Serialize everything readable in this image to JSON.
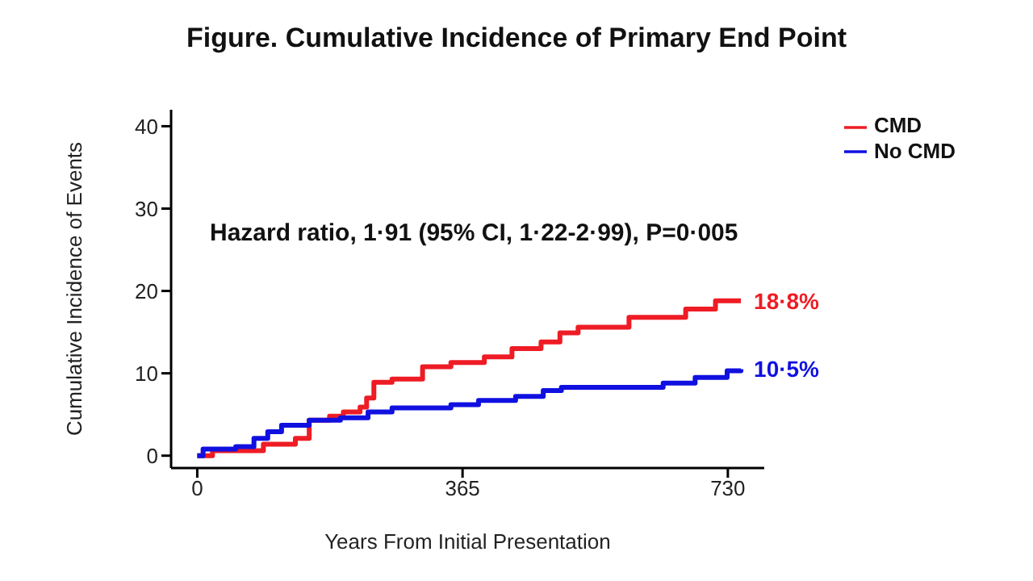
{
  "chart_data": {
    "type": "step",
    "title": "Figure. Cumulative Incidence of Primary End Point",
    "xlabel": "Years From Initial Presentation",
    "ylabel": "Cumulative Incidence of Events",
    "xlim": [
      -36,
      780
    ],
    "xticks": [
      0,
      365,
      730
    ],
    "ylim": [
      -1.5,
      42
    ],
    "yticks": [
      0,
      10,
      20,
      30,
      40
    ],
    "legend": "top right",
    "marker": "none",
    "line_style": "solid",
    "annotations": [
      "Hazard ratio, 1·91 (95% CI, 1·22-2·99), P=0·005",
      {
        "text": "18·8%",
        "x": 748,
        "y": 18.8
      },
      {
        "text": "10·5%",
        "x": 748,
        "y": 10.5
      }
    ],
    "series": [
      {
        "name": "CMD",
        "color": "#ee1c25",
        "x": [
          0,
          21,
          91,
          135,
          154,
          182,
          201,
          224,
          233,
          243,
          268,
          310,
          349,
          395,
          433,
          473,
          499,
          524,
          594,
          672,
          713,
          748
        ],
        "values": [
          0,
          0.6,
          1.4,
          2.1,
          4.3,
          4.8,
          5.3,
          5.9,
          7,
          8.9,
          9.3,
          10.8,
          11.3,
          12,
          13,
          13.8,
          14.9,
          15.6,
          16.8,
          17.8,
          18.8,
          18.8
        ]
      },
      {
        "name": "No CMD",
        "color": "#1010e0",
        "x": [
          0,
          8,
          53,
          78,
          97,
          116,
          154,
          197,
          235,
          268,
          349,
          387,
          438,
          476,
          501,
          641,
          685,
          729,
          748
        ],
        "values": [
          0,
          0.8,
          1.1,
          2.1,
          2.9,
          3.7,
          4.3,
          4.6,
          5.3,
          5.8,
          6.2,
          6.7,
          7.2,
          7.9,
          8.3,
          8.8,
          9.5,
          10.3,
          10.5
        ]
      }
    ]
  }
}
